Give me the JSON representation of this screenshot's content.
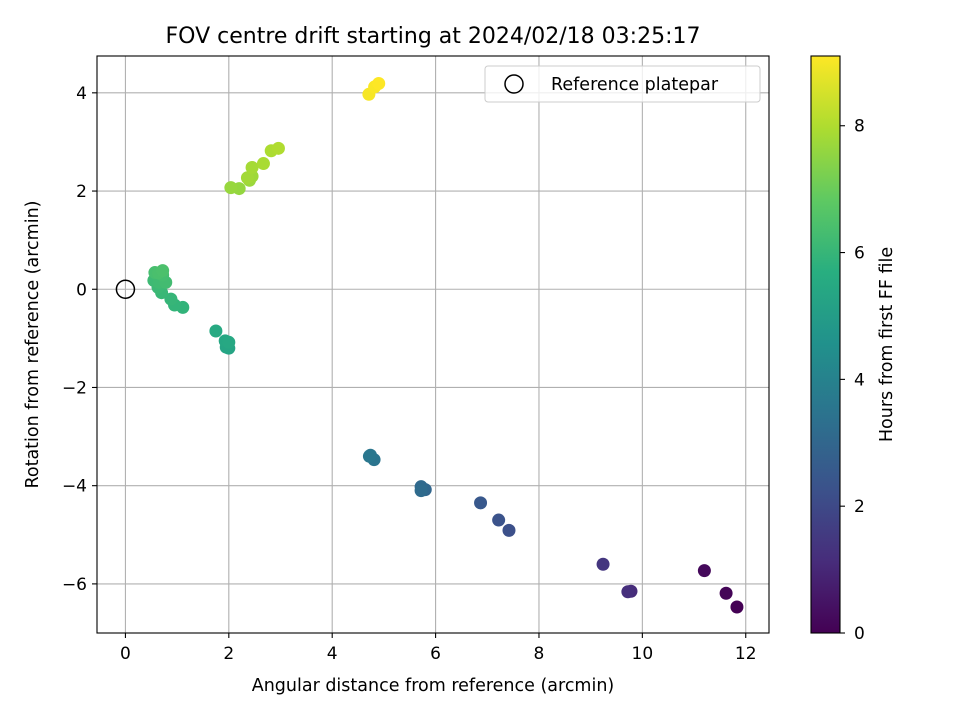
{
  "chart_data": {
    "type": "scatter",
    "title": "FOV centre drift starting at 2024/02/18 03:25:17",
    "xlabel": "Angular distance from reference (arcmin)",
    "ylabel": "Rotation from reference (arcmin)",
    "xlim": [
      -0.55,
      12.45
    ],
    "ylim": [
      -7.0,
      4.75
    ],
    "xticks": [
      0,
      2,
      4,
      6,
      8,
      10,
      12
    ],
    "yticks": [
      -6,
      -4,
      -2,
      0,
      2,
      4
    ],
    "grid": true,
    "legend": {
      "position": "top-right",
      "entries": [
        "Reference platepar"
      ]
    },
    "reference_point": {
      "x": 0,
      "y": 0,
      "marker": "open-circle"
    },
    "colorbar": {
      "label": "Hours from first FF file",
      "range": [
        0,
        9.1
      ],
      "ticks": [
        0,
        2,
        4,
        6,
        8
      ],
      "colormap": "viridis"
    },
    "points": [
      {
        "x": 11.83,
        "y": -6.47,
        "hours": 0.0
      },
      {
        "x": 11.62,
        "y": -6.19,
        "hours": 0.1
      },
      {
        "x": 11.2,
        "y": -5.73,
        "hours": 0.2
      },
      {
        "x": 9.78,
        "y": -6.15,
        "hours": 1.1
      },
      {
        "x": 9.72,
        "y": -6.16,
        "hours": 1.2
      },
      {
        "x": 9.24,
        "y": -5.6,
        "hours": 1.4
      },
      {
        "x": 7.42,
        "y": -4.91,
        "hours": 2.2
      },
      {
        "x": 7.22,
        "y": -4.7,
        "hours": 2.3
      },
      {
        "x": 6.87,
        "y": -4.35,
        "hours": 2.5
      },
      {
        "x": 5.8,
        "y": -4.08,
        "hours": 3.0
      },
      {
        "x": 5.72,
        "y": -4.02,
        "hours": 3.1
      },
      {
        "x": 5.72,
        "y": -4.1,
        "hours": 3.15
      },
      {
        "x": 4.81,
        "y": -3.47,
        "hours": 3.5
      },
      {
        "x": 4.74,
        "y": -3.38,
        "hours": 3.55
      },
      {
        "x": 4.72,
        "y": -3.4,
        "hours": 3.6
      },
      {
        "x": 2.0,
        "y": -1.2,
        "hours": 5.3
      },
      {
        "x": 1.95,
        "y": -1.18,
        "hours": 5.35
      },
      {
        "x": 1.93,
        "y": -1.05,
        "hours": 5.4
      },
      {
        "x": 2.0,
        "y": -1.08,
        "hours": 5.45
      },
      {
        "x": 1.75,
        "y": -0.85,
        "hours": 5.5
      },
      {
        "x": 1.11,
        "y": -0.37,
        "hours": 5.9
      },
      {
        "x": 0.95,
        "y": -0.32,
        "hours": 5.95
      },
      {
        "x": 0.88,
        "y": -0.2,
        "hours": 6.0
      },
      {
        "x": 0.7,
        "y": -0.07,
        "hours": 6.05
      },
      {
        "x": 0.63,
        "y": 0.04,
        "hours": 6.1
      },
      {
        "x": 0.55,
        "y": 0.18,
        "hours": 6.15
      },
      {
        "x": 0.65,
        "y": 0.14,
        "hours": 6.2
      },
      {
        "x": 0.78,
        "y": 0.14,
        "hours": 6.25
      },
      {
        "x": 0.72,
        "y": 0.29,
        "hours": 6.3
      },
      {
        "x": 0.57,
        "y": 0.34,
        "hours": 6.35
      },
      {
        "x": 0.64,
        "y": 0.33,
        "hours": 6.4
      },
      {
        "x": 0.72,
        "y": 0.38,
        "hours": 6.45
      },
      {
        "x": 2.2,
        "y": 2.05,
        "hours": 7.6
      },
      {
        "x": 2.04,
        "y": 2.07,
        "hours": 7.65
      },
      {
        "x": 2.4,
        "y": 2.22,
        "hours": 7.7
      },
      {
        "x": 2.45,
        "y": 2.3,
        "hours": 7.75
      },
      {
        "x": 2.36,
        "y": 2.27,
        "hours": 7.8
      },
      {
        "x": 2.45,
        "y": 2.48,
        "hours": 7.85
      },
      {
        "x": 2.67,
        "y": 2.56,
        "hours": 7.9
      },
      {
        "x": 2.82,
        "y": 2.82,
        "hours": 7.95
      },
      {
        "x": 2.96,
        "y": 2.87,
        "hours": 8.0
      },
      {
        "x": 4.71,
        "y": 3.97,
        "hours": 9.0
      },
      {
        "x": 4.82,
        "y": 4.12,
        "hours": 9.05
      },
      {
        "x": 4.9,
        "y": 4.19,
        "hours": 9.1
      }
    ]
  }
}
